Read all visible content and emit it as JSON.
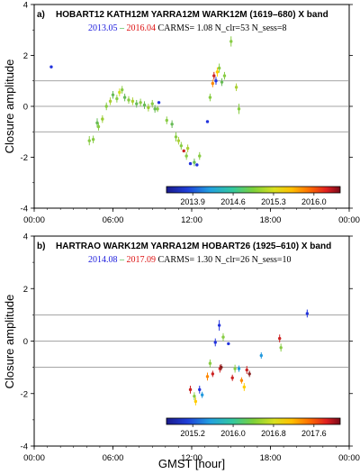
{
  "xlabel": "GMST [hour]",
  "ylabel": "Closure amplitude",
  "chart_data": [
    {
      "type": "scatter",
      "panel_label": "a)",
      "title": "HOBART12 KATH12M YARRA12M WARK12M  (1619–680) X band",
      "date_start": "2013.05",
      "date_sep": "–",
      "date_end": "2016.04",
      "carms": "CARMS= 1.08",
      "n_clr": "N_clr=53",
      "n_sess": "N_sess=8",
      "x_ticks": [
        "00:00",
        "06:00",
        "12:00",
        "18:00",
        "00:00"
      ],
      "y_ticks": [
        "-4",
        "-2",
        "0",
        "2",
        "4"
      ],
      "xlim": [
        0,
        24
      ],
      "ylim": [
        -4,
        4
      ],
      "hlines": [
        -1,
        0,
        1
      ],
      "colorbar_ticks": [
        "2013.9",
        "2014.6",
        "2015.3",
        "2016.0"
      ],
      "points": [
        {
          "x": 1.3,
          "y": 1.55,
          "e": 0.0,
          "c": "#2233dd"
        },
        {
          "x": 4.2,
          "y": -1.35,
          "e": 0.18,
          "c": "#88cc44"
        },
        {
          "x": 4.5,
          "y": -1.3,
          "e": 0.15,
          "c": "#88cc44"
        },
        {
          "x": 4.8,
          "y": -0.65,
          "e": 0.18,
          "c": "#66bb55"
        },
        {
          "x": 4.9,
          "y": -0.8,
          "e": 0.15,
          "c": "#88cc44"
        },
        {
          "x": 5.2,
          "y": -0.5,
          "e": 0.15,
          "c": "#99cc33"
        },
        {
          "x": 5.5,
          "y": 0.0,
          "e": 0.15,
          "c": "#88cc44"
        },
        {
          "x": 5.8,
          "y": 0.2,
          "e": 0.15,
          "c": "#aad033"
        },
        {
          "x": 6.0,
          "y": 0.45,
          "e": 0.15,
          "c": "#66bb55"
        },
        {
          "x": 6.3,
          "y": 0.3,
          "e": 0.15,
          "c": "#88cc44"
        },
        {
          "x": 6.5,
          "y": 0.55,
          "e": 0.15,
          "c": "#ccdd22"
        },
        {
          "x": 6.7,
          "y": 0.65,
          "e": 0.15,
          "c": "#88cc44"
        },
        {
          "x": 6.9,
          "y": 0.35,
          "e": 0.15,
          "c": "#66bb55"
        },
        {
          "x": 7.2,
          "y": 0.25,
          "e": 0.15,
          "c": "#88cc44"
        },
        {
          "x": 7.5,
          "y": 0.2,
          "e": 0.15,
          "c": "#aad033"
        },
        {
          "x": 7.8,
          "y": 0.1,
          "e": 0.15,
          "c": "#66bb55"
        },
        {
          "x": 8.1,
          "y": 0.15,
          "e": 0.15,
          "c": "#88cc44"
        },
        {
          "x": 8.4,
          "y": 0.05,
          "e": 0.15,
          "c": "#66bb55"
        },
        {
          "x": 8.7,
          "y": -0.05,
          "e": 0.15,
          "c": "#99cc33"
        },
        {
          "x": 9.0,
          "y": 0.1,
          "e": 0.15,
          "c": "#88cc44"
        },
        {
          "x": 9.2,
          "y": -0.1,
          "e": 0.15,
          "c": "#66bb55"
        },
        {
          "x": 9.4,
          "y": -0.1,
          "e": 0.12,
          "c": "#88cc44"
        },
        {
          "x": 9.5,
          "y": 0.15,
          "e": 0.0,
          "c": "#2233dd"
        },
        {
          "x": 10.1,
          "y": -0.55,
          "e": 0.15,
          "c": "#88cc44"
        },
        {
          "x": 10.5,
          "y": -0.7,
          "e": 0.15,
          "c": "#66bb55"
        },
        {
          "x": 10.8,
          "y": -1.2,
          "e": 0.18,
          "c": "#88cc44"
        },
        {
          "x": 11.0,
          "y": -1.35,
          "e": 0.15,
          "c": "#aad033"
        },
        {
          "x": 11.2,
          "y": -1.55,
          "e": 0.15,
          "c": "#88cc44"
        },
        {
          "x": 11.4,
          "y": -1.75,
          "e": 0.0,
          "c": "#cc2222"
        },
        {
          "x": 11.6,
          "y": -1.95,
          "e": 0.15,
          "c": "#88cc44"
        },
        {
          "x": 11.7,
          "y": -1.65,
          "e": 0.15,
          "c": "#aad033"
        },
        {
          "x": 11.9,
          "y": -2.25,
          "e": 0.0,
          "c": "#2233dd"
        },
        {
          "x": 12.2,
          "y": -2.2,
          "e": 0.15,
          "c": "#66bb55"
        },
        {
          "x": 12.4,
          "y": -2.3,
          "e": 0.0,
          "c": "#2233dd"
        },
        {
          "x": 12.6,
          "y": -1.95,
          "e": 0.15,
          "c": "#88cc44"
        },
        {
          "x": 13.2,
          "y": -0.6,
          "e": 0.0,
          "c": "#2233dd"
        },
        {
          "x": 13.4,
          "y": 0.35,
          "e": 0.15,
          "c": "#88cc44"
        },
        {
          "x": 13.6,
          "y": 0.9,
          "e": 0.15,
          "c": "#ff8800"
        },
        {
          "x": 13.7,
          "y": 1.2,
          "e": 0.15,
          "c": "#cc2222"
        },
        {
          "x": 13.85,
          "y": 1.0,
          "e": 0.15,
          "c": "#2233dd"
        },
        {
          "x": 13.95,
          "y": 1.35,
          "e": 0.18,
          "c": "#ffcc00"
        },
        {
          "x": 14.1,
          "y": 1.5,
          "e": 0.18,
          "c": "#88cc44"
        },
        {
          "x": 14.3,
          "y": 0.95,
          "e": 0.15,
          "c": "#66bb55"
        },
        {
          "x": 14.5,
          "y": 1.2,
          "e": 0.15,
          "c": "#88cc44"
        },
        {
          "x": 15.0,
          "y": 2.55,
          "e": 0.2,
          "c": "#88cc44"
        },
        {
          "x": 15.4,
          "y": 0.75,
          "e": 0.15,
          "c": "#aad033"
        },
        {
          "x": 15.6,
          "y": -0.1,
          "e": 0.2,
          "c": "#88cc44"
        }
      ]
    },
    {
      "type": "scatter",
      "panel_label": "b)",
      "title": "HARTRAO WARK12M YARRA12M HOBART26  (1925–610) X band",
      "date_start": "2014.08",
      "date_sep": "–",
      "date_end": "2017.09",
      "carms": "CARMS= 1.30",
      "n_clr": "N_clr=26",
      "n_sess": "N_sess=10",
      "x_ticks": [
        "00:00",
        "06:00",
        "12:00",
        "18:00",
        "00:00"
      ],
      "y_ticks": [
        "-4",
        "-2",
        "0",
        "2",
        "4"
      ],
      "xlim": [
        0,
        24
      ],
      "ylim": [
        -4,
        4
      ],
      "hlines": [
        -1,
        0,
        1
      ],
      "colorbar_ticks": [
        "2015.2",
        "2016.0",
        "2016.8",
        "2017.6"
      ],
      "points": [
        {
          "x": 11.9,
          "y": -1.85,
          "e": 0.15,
          "c": "#cc2222"
        },
        {
          "x": 12.2,
          "y": -2.1,
          "e": 0.15,
          "c": "#88cc44"
        },
        {
          "x": 12.3,
          "y": -2.3,
          "e": 0.15,
          "c": "#ffcc00"
        },
        {
          "x": 12.6,
          "y": -1.85,
          "e": 0.15,
          "c": "#2233dd"
        },
        {
          "x": 12.8,
          "y": -2.05,
          "e": 0.12,
          "c": "#2299dd"
        },
        {
          "x": 13.2,
          "y": -1.35,
          "e": 0.15,
          "c": "#ff8800"
        },
        {
          "x": 13.4,
          "y": -0.85,
          "e": 0.15,
          "c": "#88cc44"
        },
        {
          "x": 13.6,
          "y": -1.25,
          "e": 0.12,
          "c": "#cc2222"
        },
        {
          "x": 13.8,
          "y": -0.05,
          "e": 0.15,
          "c": "#2233dd"
        },
        {
          "x": 14.1,
          "y": 0.6,
          "e": 0.2,
          "c": "#2233dd"
        },
        {
          "x": 14.15,
          "y": -1.05,
          "e": 0.15,
          "c": "#cc2222"
        },
        {
          "x": 14.25,
          "y": -1.0,
          "e": 0.12,
          "c": "#882222"
        },
        {
          "x": 14.4,
          "y": 0.15,
          "e": 0.15,
          "c": "#88cc44"
        },
        {
          "x": 14.8,
          "y": -0.1,
          "e": 0.0,
          "c": "#2233dd"
        },
        {
          "x": 15.1,
          "y": -1.4,
          "e": 0.12,
          "c": "#cc2222"
        },
        {
          "x": 15.3,
          "y": -1.05,
          "e": 0.15,
          "c": "#88cc44"
        },
        {
          "x": 15.6,
          "y": -1.05,
          "e": 0.12,
          "c": "#2299dd"
        },
        {
          "x": 15.8,
          "y": -1.5,
          "e": 0.12,
          "c": "#ff8800"
        },
        {
          "x": 16.0,
          "y": -1.75,
          "e": 0.15,
          "c": "#ffcc00"
        },
        {
          "x": 16.2,
          "y": -1.1,
          "e": 0.15,
          "c": "#cc2222"
        },
        {
          "x": 16.4,
          "y": -1.25,
          "e": 0.12,
          "c": "#882222"
        },
        {
          "x": 17.3,
          "y": -0.55,
          "e": 0.12,
          "c": "#2299dd"
        },
        {
          "x": 18.7,
          "y": 0.1,
          "e": 0.15,
          "c": "#cc2222"
        },
        {
          "x": 18.8,
          "y": -0.25,
          "e": 0.15,
          "c": "#88cc44"
        },
        {
          "x": 20.8,
          "y": 1.05,
          "e": 0.15,
          "c": "#2233dd"
        }
      ]
    }
  ]
}
